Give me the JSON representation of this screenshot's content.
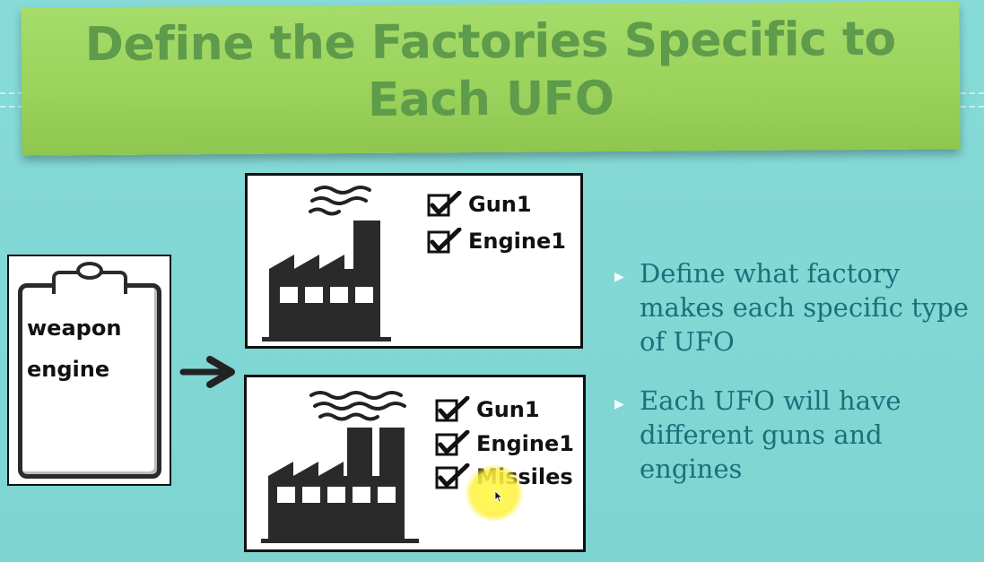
{
  "slide": {
    "title": "Define the Factories Specific to Each UFO",
    "colors": {
      "background": "#7fd6d3",
      "banner": "#9bd35c",
      "title_text": "#5e9b4a",
      "bullet_text": "#1e6f7c",
      "highlight": "#fff04a"
    }
  },
  "clipboard": {
    "lines": [
      "weapon",
      "engine"
    ],
    "icon": "clipboard-icon"
  },
  "arrow": {
    "icon": "right-arrow-icon"
  },
  "factory_1": {
    "icon": "factory-icon",
    "checklist": [
      "Gun1",
      "Engine1"
    ]
  },
  "factory_2": {
    "icon": "factory-icon",
    "checklist": [
      "Gun1",
      "Engine1",
      "Missiles"
    ]
  },
  "bullets": [
    "Define what factory makes each specific type of UFO",
    "Each UFO will have different guns and engines"
  ]
}
